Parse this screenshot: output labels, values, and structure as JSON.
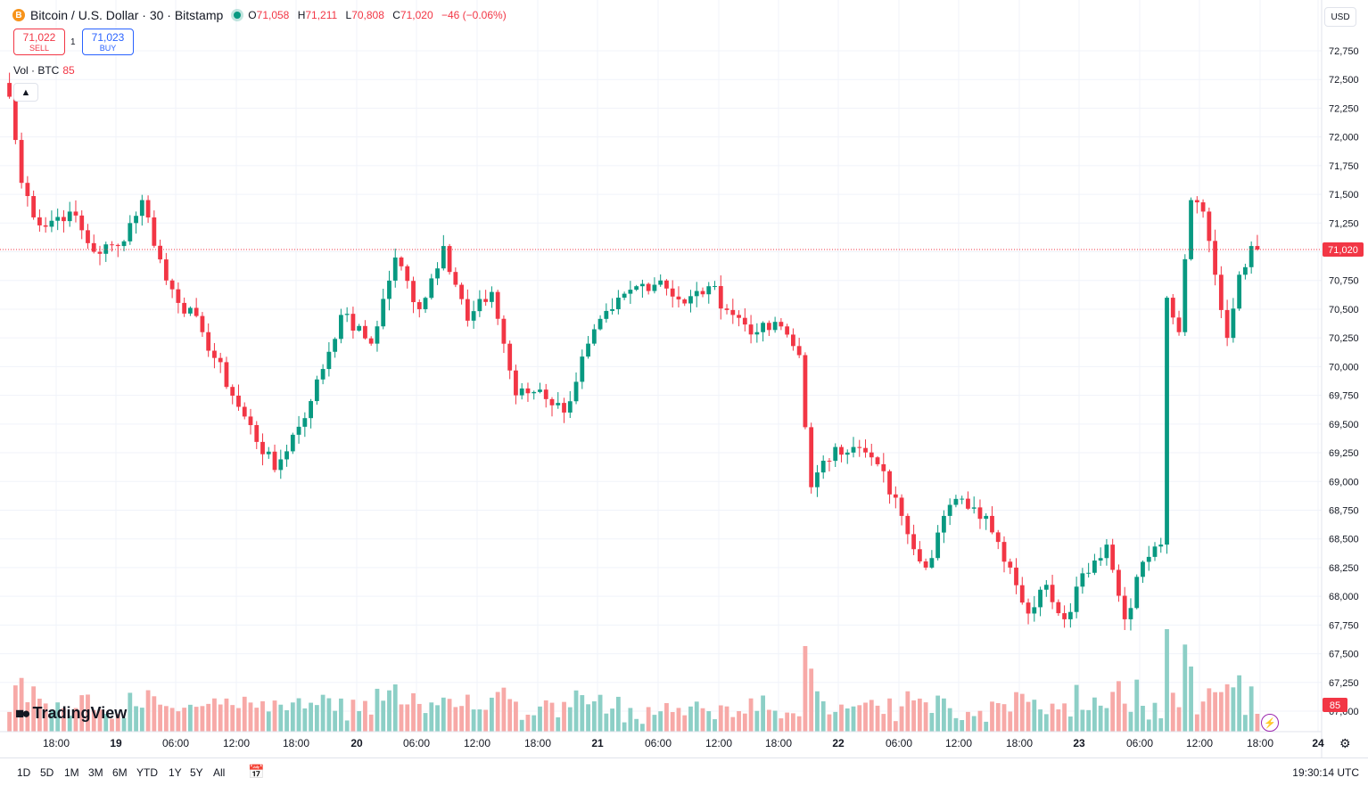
{
  "header": {
    "symbol_icon": "B",
    "title": "Bitcoin / U.S. Dollar · 30 · Bitstamp",
    "open_label": "O",
    "open": "71,058",
    "high_label": "H",
    "high": "71,211",
    "low_label": "L",
    "low": "70,808",
    "close_label": "C",
    "close": "71,020",
    "change": "−46 (−0.06%)"
  },
  "trade": {
    "sell_price": "71,022",
    "sell_label": "SELL",
    "spread": "1",
    "buy_price": "71,023",
    "buy_label": "BUY"
  },
  "volume_label": {
    "name": "Vol · BTC",
    "value": "85"
  },
  "currency": "USD",
  "logo": "TradingView",
  "time_range_buttons": [
    "1D",
    "5D",
    "1M",
    "3M",
    "6M",
    "YTD",
    "1Y",
    "5Y",
    "All"
  ],
  "clock": "19:30:14 UTC",
  "colors": {
    "up": "#089981",
    "down": "#f23645",
    "vol_up": "#8ccfc6",
    "vol_down": "#f7a9a7",
    "grid": "#f0f3fa"
  },
  "chart_data": {
    "type": "candlestick",
    "interval_minutes": 30,
    "y_ticks": [
      67000,
      67250,
      67500,
      67750,
      68000,
      68250,
      68500,
      68750,
      69000,
      69250,
      69500,
      69750,
      70000,
      70250,
      70500,
      70750,
      71000,
      71250,
      71500,
      71750,
      72000,
      72250,
      72500,
      72750
    ],
    "y_tick_labels": [
      "67,000",
      "67,250",
      "67,500",
      "67,750",
      "68,000",
      "68,250",
      "68,500",
      "68,750",
      "69,000",
      "69,250",
      "69,500",
      "69,750",
      "70,000",
      "70,250",
      "70,500",
      "70,750",
      "71,000",
      "71,250",
      "71,500",
      "71,750",
      "72,000",
      "72,250",
      "72,500",
      "72,750"
    ],
    "ylim": [
      66900,
      72900
    ],
    "x_tick_labels": [
      "18:00",
      "19",
      "06:00",
      "12:00",
      "18:00",
      "20",
      "06:00",
      "12:00",
      "18:00",
      "21",
      "06:00",
      "12:00",
      "18:00",
      "22",
      "06:00",
      "12:00",
      "18:00",
      "23",
      "06:00",
      "12:00",
      "18:00",
      "24"
    ],
    "last_price": 71020,
    "last_price_label": "71,020",
    "last_volume_label": "85",
    "anchors": [
      {
        "i": 0,
        "p": 72350
      },
      {
        "i": 2,
        "p": 71600
      },
      {
        "i": 5,
        "p": 71230
      },
      {
        "i": 10,
        "p": 71350
      },
      {
        "i": 14,
        "p": 71000
      },
      {
        "i": 18,
        "p": 71050
      },
      {
        "i": 22,
        "p": 71450
      },
      {
        "i": 26,
        "p": 70750
      },
      {
        "i": 32,
        "p": 70300
      },
      {
        "i": 38,
        "p": 69650
      },
      {
        "i": 44,
        "p": 69100
      },
      {
        "i": 50,
        "p": 69700
      },
      {
        "i": 55,
        "p": 70450
      },
      {
        "i": 60,
        "p": 70200
      },
      {
        "i": 64,
        "p": 70950
      },
      {
        "i": 68,
        "p": 70500
      },
      {
        "i": 72,
        "p": 71050
      },
      {
        "i": 76,
        "p": 70400
      },
      {
        "i": 80,
        "p": 70650
      },
      {
        "i": 84,
        "p": 69750
      },
      {
        "i": 88,
        "p": 69800
      },
      {
        "i": 92,
        "p": 69600
      },
      {
        "i": 96,
        "p": 70200
      },
      {
        "i": 100,
        "p": 70500
      },
      {
        "i": 104,
        "p": 70700
      },
      {
        "i": 108,
        "p": 70750
      },
      {
        "i": 112,
        "p": 70550
      },
      {
        "i": 116,
        "p": 70700
      },
      {
        "i": 120,
        "p": 70450
      },
      {
        "i": 124,
        "p": 70300
      },
      {
        "i": 128,
        "p": 70350
      },
      {
        "i": 131,
        "p": 70100
      },
      {
        "i": 133,
        "p": 68950
      },
      {
        "i": 137,
        "p": 69300
      },
      {
        "i": 140,
        "p": 69300
      },
      {
        "i": 144,
        "p": 69150
      },
      {
        "i": 148,
        "p": 68700
      },
      {
        "i": 152,
        "p": 68250
      },
      {
        "i": 155,
        "p": 68700
      },
      {
        "i": 158,
        "p": 68850
      },
      {
        "i": 162,
        "p": 68700
      },
      {
        "i": 166,
        "p": 68250
      },
      {
        "i": 169,
        "p": 67850
      },
      {
        "i": 172,
        "p": 68100
      },
      {
        "i": 175,
        "p": 67800
      },
      {
        "i": 178,
        "p": 68200
      },
      {
        "i": 182,
        "p": 68450
      },
      {
        "i": 185,
        "p": 67800
      },
      {
        "i": 188,
        "p": 68300
      },
      {
        "i": 191,
        "p": 68450
      },
      {
        "i": 192,
        "p": 70600
      },
      {
        "i": 194,
        "p": 70300
      },
      {
        "i": 196,
        "p": 71450
      },
      {
        "i": 198,
        "p": 71350
      },
      {
        "i": 200,
        "p": 70800
      },
      {
        "i": 202,
        "p": 70250
      },
      {
        "i": 204,
        "p": 70800
      },
      {
        "i": 206,
        "p": 71050
      },
      {
        "i": 207,
        "p": 71020
      }
    ]
  }
}
